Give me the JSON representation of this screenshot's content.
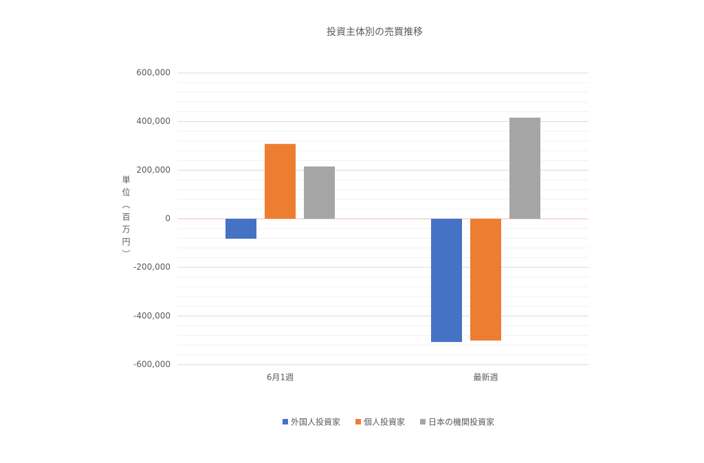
{
  "chart_data": {
    "type": "bar",
    "title": "投資主体別の売買推移",
    "y_label": "単位（百万円）",
    "categories": [
      "6月1週",
      "最新週"
    ],
    "series": [
      {
        "name": "外国人投資家",
        "color": "#4472c4",
        "values": [
          -82000,
          -507000
        ]
      },
      {
        "name": "個人投資家",
        "color": "#ed7d31",
        "values": [
          308000,
          -501000
        ]
      },
      {
        "name": "日本の機関投資家",
        "color": "#a5a5a5",
        "values": [
          215000,
          416000
        ]
      }
    ],
    "ylim": [
      -600000,
      600000
    ],
    "yticks": [
      {
        "value": -600000,
        "label": "-600,000"
      },
      {
        "value": -400000,
        "label": "-400,000"
      },
      {
        "value": -200000,
        "label": "-200,000"
      },
      0,
      {
        "value": 200000,
        "label": "200,000"
      },
      {
        "value": 400000,
        "label": "400,000"
      },
      {
        "value": 600000,
        "label": "600,000"
      }
    ],
    "minor_yticks": [
      -560000,
      -520000,
      -480000,
      -440000,
      -360000,
      -320000,
      -280000,
      -240000,
      -160000,
      -120000,
      -80000,
      -40000,
      40000,
      80000,
      120000,
      160000,
      240000,
      280000,
      320000,
      360000,
      440000,
      480000,
      520000,
      560000
    ],
    "grid": true,
    "legend": "bottom"
  }
}
